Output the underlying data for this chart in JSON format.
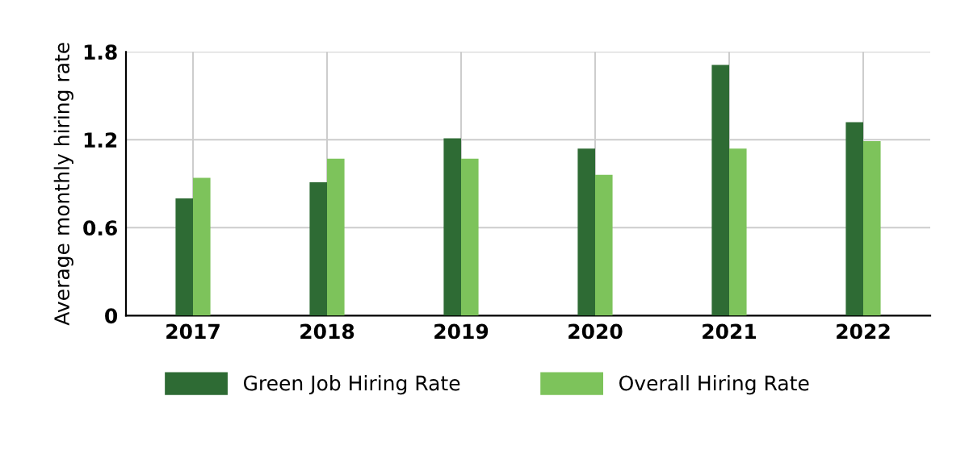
{
  "chart_data": {
    "type": "bar",
    "ylabel": "Average monthly hiring rate",
    "categories": [
      "2017",
      "2018",
      "2019",
      "2020",
      "2021",
      "2022"
    ],
    "series": [
      {
        "name": "Green Job Hiring Rate",
        "color": "#2e6b34",
        "values": [
          0.8,
          0.91,
          1.21,
          1.14,
          1.71,
          1.32
        ]
      },
      {
        "name": "Overall Hiring Rate",
        "color": "#7dc35b",
        "values": [
          0.94,
          1.07,
          1.07,
          0.96,
          1.14,
          1.19
        ]
      }
    ],
    "ylim": [
      0,
      1.8
    ],
    "yticks": [
      0,
      0.6,
      1.2,
      1.8
    ],
    "grid": true,
    "legend": "bottom"
  }
}
